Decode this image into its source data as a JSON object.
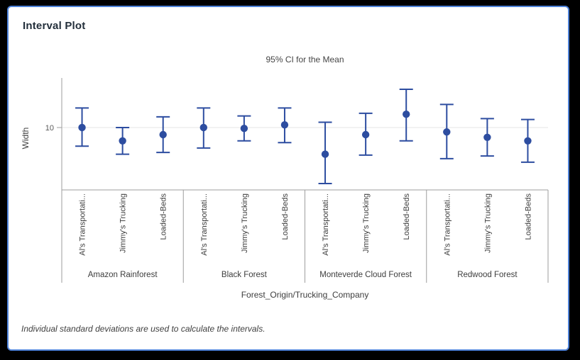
{
  "page": {
    "background": "#000000"
  },
  "card": {
    "title": "Interval Plot",
    "border_color": "#4e82d8",
    "background": "#ffffff"
  },
  "chart_data": {
    "type": "interval",
    "title": "95% CI for the Mean",
    "xlabel": "Forest_Origin/Trucking_Company",
    "ylabel": "Width",
    "ylim": [
      6.49,
      12.79
    ],
    "yticks": [
      10
    ],
    "grid": "horizontal-gridline-at-yticks",
    "point_color": "#2d4da0",
    "axis_color": "#9e9e9e",
    "grid_color": "#e6e6e6",
    "label_color": "#3d3d3d",
    "tick_label_color": "#595959",
    "groups": [
      {
        "label": "Amazon Rainforest",
        "items": [
          {
            "label": "Al's Transportati...",
            "mean": 10.0,
            "ci_low": 8.95,
            "ci_high": 11.1
          },
          {
            "label": "Jimmy's Trucking",
            "mean": 9.25,
            "ci_low": 8.5,
            "ci_high": 10.0
          },
          {
            "label": "Loaded-Beds",
            "mean": 9.6,
            "ci_low": 8.6,
            "ci_high": 10.6
          }
        ]
      },
      {
        "label": "Black Forest",
        "items": [
          {
            "label": "Al's Transportati...",
            "mean": 10.0,
            "ci_low": 8.85,
            "ci_high": 11.1
          },
          {
            "label": "Jimmy's Trucking",
            "mean": 9.95,
            "ci_low": 9.25,
            "ci_high": 10.65
          },
          {
            "label": "Loaded-Beds",
            "mean": 10.15,
            "ci_low": 9.15,
            "ci_high": 11.1
          }
        ]
      },
      {
        "label": "Monteverde Cloud Forest",
        "items": [
          {
            "label": "Al's Transportati...",
            "mean": 8.5,
            "ci_low": 6.85,
            "ci_high": 10.3
          },
          {
            "label": "Jimmy's Trucking",
            "mean": 9.6,
            "ci_low": 8.45,
            "ci_high": 10.8
          },
          {
            "label": "Loaded-Beds",
            "mean": 10.75,
            "ci_low": 9.25,
            "ci_high": 12.15
          }
        ]
      },
      {
        "label": "Redwood Forest",
        "items": [
          {
            "label": "Al's Transportati...",
            "mean": 9.75,
            "ci_low": 8.25,
            "ci_high": 11.3
          },
          {
            "label": "Jimmy's Trucking",
            "mean": 9.45,
            "ci_low": 8.4,
            "ci_high": 10.5
          },
          {
            "label": "Loaded-Beds",
            "mean": 9.25,
            "ci_low": 8.05,
            "ci_high": 10.45
          }
        ]
      }
    ],
    "footnote": "Individual standard deviations are used to calculate the intervals."
  }
}
